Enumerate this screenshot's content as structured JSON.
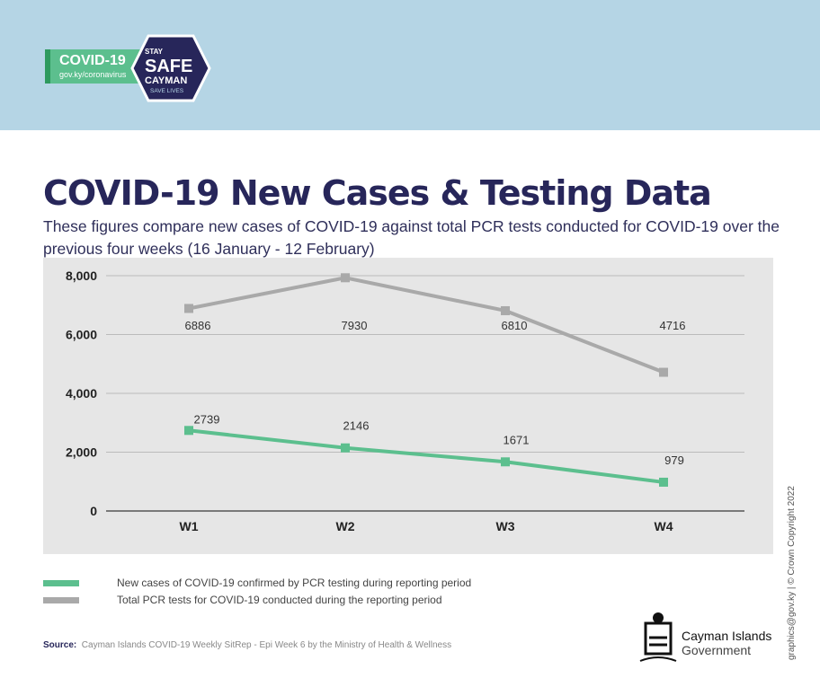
{
  "logo": {
    "title": "COVID-19",
    "url": "gov.ky/coronavirus",
    "badge_lines": [
      "STAY",
      "SAFE",
      "CAYMAN",
      "SAVE LIVES"
    ]
  },
  "title": "COVID-19 New Cases & Testing Data",
  "subtitle": "These figures compare new cases of COVID-19 against total PCR tests conducted for COVID-19 over the previous four weeks (16 January - 12 February)",
  "chart_data": {
    "type": "line",
    "categories": [
      "W1",
      "W2",
      "W3",
      "W4"
    ],
    "ylim": [
      0,
      8000
    ],
    "yticks": [
      "0",
      "2,000",
      "4,000",
      "6,000",
      "8,000"
    ],
    "grid": true,
    "legend": "bottom",
    "series": [
      {
        "name": "New cases  of COVID-19 confirmed by PCR testing  during reporting period",
        "color": "#5cbf8e",
        "values": [
          2739,
          2146,
          1671,
          979
        ]
      },
      {
        "name": "Total PCR tests for COVID-19 conducted during the reporting period",
        "color": "#a9a9a9",
        "values": [
          6886,
          7930,
          6810,
          4716
        ]
      }
    ]
  },
  "source": {
    "label": "Source:",
    "text": "Cayman Islands COVID-19 Weekly SitRep - Epi Week 6 by the Ministry of Health & Wellness"
  },
  "government": {
    "name": "Cayman Islands",
    "sub": "Government"
  },
  "copyright": "graphics@gov.ky | © Crown Copyright 2022"
}
